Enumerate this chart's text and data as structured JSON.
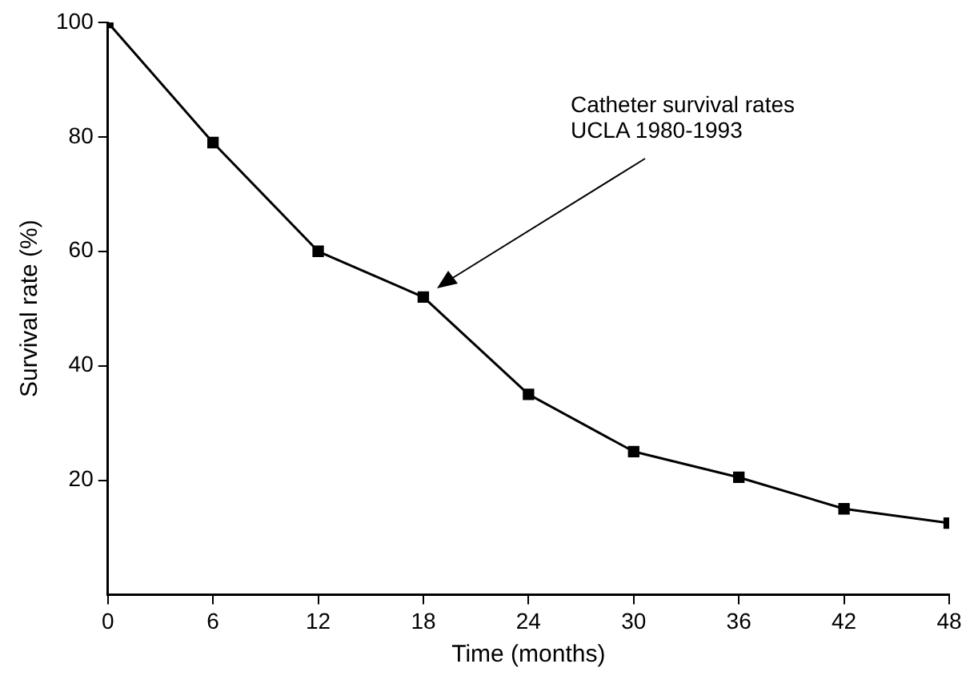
{
  "chart_data": {
    "type": "line",
    "xlabel": "Time (months)",
    "ylabel": "Survival rate (%)",
    "x": [
      0,
      6,
      12,
      18,
      24,
      30,
      36,
      42,
      48
    ],
    "series": [
      {
        "color": "#000000",
        "values": [
          100,
          79,
          60,
          52,
          35,
          25,
          20.5,
          15,
          12.5
        ]
      }
    ],
    "xlim": [
      0,
      48
    ],
    "xticks": [
      0,
      6,
      12,
      18,
      24,
      30,
      36,
      42,
      48
    ],
    "ylim": [
      0,
      100
    ],
    "yticks": [
      20,
      40,
      60,
      80,
      100
    ],
    "annotations": [
      "Catheter survival rates\nUCLA 1980-1993"
    ],
    "grid": false,
    "legend": false,
    "marker": "square",
    "line_style": "solid"
  }
}
